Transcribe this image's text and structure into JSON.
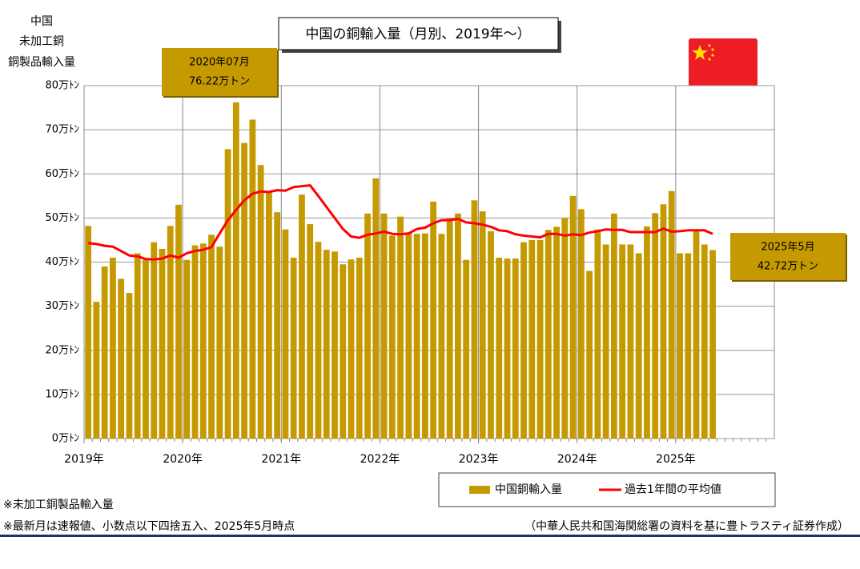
{
  "chart_data": {
    "type": "bar",
    "title": "中国の銅輸入量（月別、2019年～）",
    "y_axis_label": [
      "中国",
      "未加工銅",
      "銅製品輸入量"
    ],
    "categories": [
      "2019年",
      null,
      null,
      null,
      null,
      null,
      null,
      null,
      null,
      null,
      null,
      null,
      "2020年",
      null,
      null,
      null,
      null,
      null,
      null,
      null,
      null,
      null,
      null,
      null,
      "2021年",
      null,
      null,
      null,
      null,
      null,
      null,
      null,
      null,
      null,
      null,
      null,
      "2022年",
      null,
      null,
      null,
      null,
      null,
      null,
      null,
      null,
      null,
      null,
      null,
      "2023年",
      null,
      null,
      null,
      null,
      null,
      null,
      null,
      null,
      null,
      null,
      null,
      "2024年",
      null,
      null,
      null,
      null,
      null,
      null,
      null,
      null,
      null,
      null,
      null,
      "2025年",
      null,
      null,
      null,
      null,
      null,
      null,
      null,
      null,
      null,
      null,
      null
    ],
    "series": [
      {
        "name": "中国銅輸入量",
        "type": "bar",
        "color": "#c49a00",
        "values": [
          48.2,
          31,
          39,
          41,
          36.2,
          33,
          42,
          40.5,
          44.5,
          43,
          48.2,
          53,
          40.5,
          43.8,
          44.2,
          46.2,
          43.5,
          65.6,
          76.22,
          67,
          72.3,
          62,
          55.8,
          51.3,
          47.4,
          41,
          55.3,
          48.6,
          44.6,
          42.8,
          42.4,
          39.5,
          40.6,
          41,
          51,
          59,
          51,
          46,
          50.3,
          46.5,
          46.4,
          46.5,
          53.7,
          46.4,
          49.9,
          51,
          40.5,
          54,
          51.5,
          47,
          41,
          40.8,
          40.8,
          44.5,
          45,
          45,
          47.3,
          48,
          50,
          55,
          52,
          38,
          47.4,
          44,
          51,
          44,
          44,
          42,
          48.1,
          51.1,
          53.1,
          56.1,
          42,
          42,
          47,
          44,
          42.72,
          null,
          null,
          null,
          null,
          null,
          null,
          null
        ]
      },
      {
        "name": "過去1年間の平均値",
        "type": "line",
        "color": "#ff0000",
        "values": [
          44.3,
          44.1,
          43.7,
          43.5,
          42.5,
          41.5,
          41.3,
          40.7,
          40.6,
          40.8,
          41.5,
          41,
          42,
          42.5,
          42.8,
          43.4,
          46.5,
          49.5,
          51.8,
          54,
          55.5,
          56,
          55.9,
          56.3,
          56.2,
          57,
          57.2,
          57.4,
          55,
          52.5,
          50,
          47.5,
          45.8,
          45.5,
          46.2,
          46.5,
          46.9,
          46.4,
          46.3,
          46.5,
          47.5,
          47.8,
          48.8,
          49.5,
          49.5,
          49.8,
          49,
          48.8,
          48.5,
          48,
          47.2,
          47,
          46.3,
          46,
          45.8,
          45.6,
          46.4,
          46.4,
          46,
          46.3,
          46.1,
          46.7,
          47,
          47.4,
          47.3,
          47.3,
          46.8,
          46.8,
          46.8,
          46.8,
          47.6,
          46.9,
          47,
          47.2,
          47.2,
          47.2,
          46.4,
          null,
          null,
          null,
          null,
          null,
          null,
          null
        ]
      }
    ],
    "ylim": [
      0,
      80
    ],
    "yticks": [
      {
        "value": 0,
        "label": "0万ﾄﾝ"
      },
      {
        "value": 10,
        "label": "10万ﾄﾝ"
      },
      {
        "value": 20,
        "label": "20万ﾄﾝ"
      },
      {
        "value": 30,
        "label": "30万ﾄﾝ"
      },
      {
        "value": 40,
        "label": "40万ﾄﾝ"
      },
      {
        "value": 50,
        "label": "50万ﾄﾝ"
      },
      {
        "value": 60,
        "label": "60万ﾄﾝ"
      },
      {
        "value": 70,
        "label": "70万ﾄﾝ"
      },
      {
        "value": 80,
        "label": "80万ﾄﾝ"
      }
    ],
    "grid": true,
    "annotations": [
      {
        "lines": [
          "2020年07月",
          "76.22万トン"
        ]
      },
      {
        "lines": [
          "2025年5月",
          "42.72万トン"
        ]
      }
    ],
    "notes": [
      "※未加工銅製品輸入量",
      "※最新月は速報値、小数点以下四捨五入、2025年5月時点"
    ],
    "source": "（中華人民共和国海関総署の資料を基に豊トラスティ証券作成）"
  }
}
